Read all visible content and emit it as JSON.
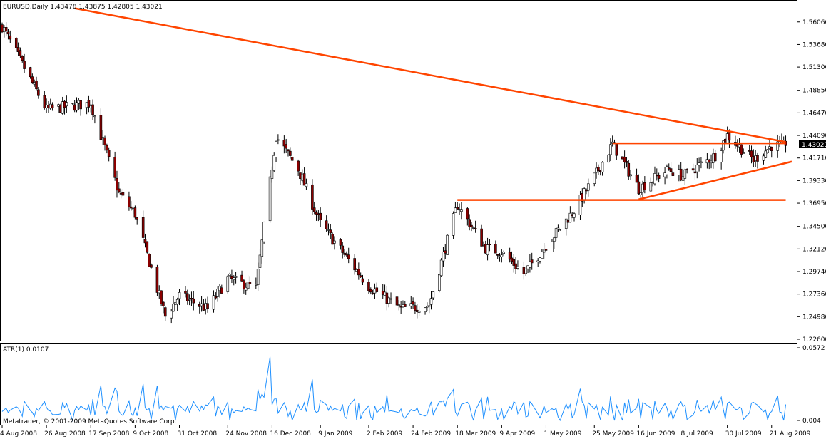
{
  "main_panel": {
    "info": "EURUSD,Daily  1.43478 1.43875 1.42805 1.43021",
    "price_tag": "1.43021",
    "price_ticks": [
      "1.56060",
      "1.53680",
      "1.51300",
      "1.48850",
      "1.46470",
      "1.44090",
      "1.41710",
      "1.39330",
      "1.36950",
      "1.34500",
      "1.32120",
      "1.29740",
      "1.27360",
      "1.24980",
      "1.22600"
    ]
  },
  "atr_panel": {
    "label": "ATR(1) 0.0107",
    "ticks": [
      "0.0572",
      "0.004"
    ]
  },
  "footer": "Metatrader, © 2001-2009 MetaQuotes Software Corp.",
  "x_ticks": [
    "4 Aug 2008",
    "26 Aug 2008",
    "17 Sep 2008",
    "9 Oct 2008",
    "31 Oct 2008",
    "24 Nov 2008",
    "16 Dec 2008",
    "9 Jan 2009",
    "2 Feb 2009",
    "24 Feb 2009",
    "18 Mar 2009",
    "9 Apr 2009",
    "1 May 2009",
    "25 May 2009",
    "16 Jun 2009",
    "8 Jul 2009",
    "30 Jul 2009",
    "21 Aug 2009"
  ],
  "colors": {
    "bull": "#ffffff",
    "bear": "#8b0000",
    "wick": "#000000",
    "trendline": "#ff4500",
    "atr": "#1e90ff",
    "frame": "#000000"
  },
  "chart_data": [
    {
      "type": "candlestick",
      "symbol": "EURUSD",
      "timeframe": "Daily",
      "ylim": [
        1.226,
        1.5732
      ],
      "close_path": [
        [
          "4 Aug 2008",
          1.556
        ],
        [
          "26 Aug 2008",
          1.468
        ],
        [
          "17 Sep 2008",
          1.475
        ],
        [
          "1 Oct 2008",
          1.38
        ],
        [
          "9 Oct 2008",
          1.358
        ],
        [
          "24 Oct 2008",
          1.25
        ],
        [
          "31 Oct 2008",
          1.272
        ],
        [
          "14 Nov 2008",
          1.258
        ],
        [
          "24 Nov 2008",
          1.29
        ],
        [
          "8 Dec 2008",
          1.28
        ],
        [
          "18 Dec 2008",
          1.44
        ],
        [
          "29 Dec 2008",
          1.405
        ],
        [
          "9 Jan 2009",
          1.348
        ],
        [
          "2 Feb 2009",
          1.282
        ],
        [
          "18 Feb 2009",
          1.258
        ],
        [
          "4 Mar 2009",
          1.262
        ],
        [
          "18 Mar 2009",
          1.368
        ],
        [
          "1 Apr 2009",
          1.322
        ],
        [
          "9 Apr 2009",
          1.318
        ],
        [
          "20 Apr 2009",
          1.295
        ],
        [
          "1 May 2009",
          1.325
        ],
        [
          "15 May 2009",
          1.362
        ],
        [
          "25 May 2009",
          1.397
        ],
        [
          "3 Jun 2009",
          1.432
        ],
        [
          "16 Jun 2009",
          1.385
        ],
        [
          "1 Jul 2009",
          1.405
        ],
        [
          "8 Jul 2009",
          1.398
        ],
        [
          "24 Jul 2009",
          1.42
        ],
        [
          "30 Jul 2009",
          1.441
        ],
        [
          "12 Aug 2009",
          1.415
        ],
        [
          "21 Aug 2009",
          1.43
        ],
        [
          "28 Aug 2009",
          1.4302
        ]
      ],
      "last": {
        "open": 1.43478,
        "high": 1.43875,
        "low": 1.42805,
        "close": 1.43021
      },
      "trendlines": [
        {
          "from": [
            "9 Sep 2008",
            1.575
          ],
          "to": [
            "28 Aug 2009",
            1.434
          ]
        },
        {
          "from": [
            "3 Jun 2009",
            1.4326
          ],
          "to": [
            "28 Aug 2009",
            1.4326
          ]
        },
        {
          "from": [
            "18 Mar 2009",
            1.3728
          ],
          "to": [
            "28 Aug 2009",
            1.3728
          ]
        },
        {
          "from": [
            "16 Jun 2009",
            1.3735
          ],
          "to": [
            "31 Aug 2009",
            1.4133
          ]
        }
      ]
    },
    {
      "type": "line",
      "name": "ATR(1)",
      "ylim": [
        0.004,
        0.0572
      ],
      "last": 0.0107
    }
  ]
}
